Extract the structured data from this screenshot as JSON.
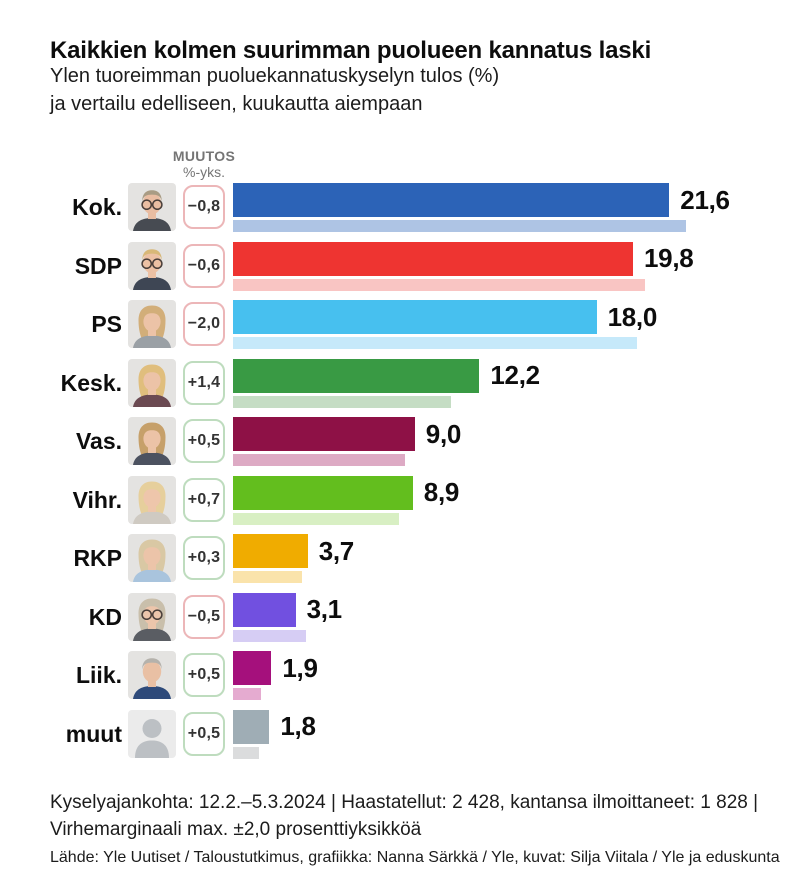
{
  "header": {
    "title": "Kaikkien kolmen suurimman puolueen kannatus laski",
    "subtitle_line1": "Ylen tuoreimman puoluekannatuskyselyn tulos (%)",
    "subtitle_line2": "ja vertailu edelliseen, kuukautta aiempaan"
  },
  "column_header": {
    "line1": "MUUTOS",
    "line2": "%-yks."
  },
  "chart_data": {
    "type": "bar",
    "orientation": "horizontal",
    "unit": "%",
    "value_range": [
      0,
      22.4
    ],
    "legend": "dark bar = current poll result, light bar = previous poll (one month earlier)",
    "rows": [
      {
        "party": "Kok.",
        "value": 21.6,
        "value_label": "21,6",
        "change": -0.8,
        "change_label": "−0,8",
        "previous": 22.4,
        "color": "#2c63b7",
        "light_color": "#aec4e4",
        "avatar": {
          "kind": "m",
          "hair": "#a99c84",
          "skin": "#e9bda2",
          "suit": "#474b52",
          "glasses": true
        }
      },
      {
        "party": "SDP",
        "value": 19.8,
        "value_label": "19,8",
        "change": -0.6,
        "change_label": "−0,6",
        "previous": 20.4,
        "color": "#ee3431",
        "light_color": "#f9c5c3",
        "avatar": {
          "kind": "m",
          "hair": "#d8b878",
          "skin": "#ecc1a4",
          "suit": "#3e4654",
          "glasses": true
        }
      },
      {
        "party": "PS",
        "value": 18.0,
        "value_label": "18,0",
        "change": -2.0,
        "change_label": "−2,0",
        "previous": 20.0,
        "color": "#47c0ef",
        "light_color": "#c6e9fa",
        "avatar": {
          "kind": "f",
          "hair": "#d2ae79",
          "skin": "#ecc3a7",
          "suit": "#9aa0a5",
          "glasses": false
        }
      },
      {
        "party": "Kesk.",
        "value": 12.2,
        "value_label": "12,2",
        "change": 1.4,
        "change_label": "+1,4",
        "previous": 10.8,
        "color": "#399a44",
        "light_color": "#c5ddc4",
        "avatar": {
          "kind": "f",
          "hair": "#e0be7d",
          "skin": "#ecc3a7",
          "suit": "#6b4a52",
          "glasses": false
        }
      },
      {
        "party": "Vas.",
        "value": 9.0,
        "value_label": "9,0",
        "change": 0.5,
        "change_label": "+0,5",
        "previous": 8.5,
        "color": "#8e1146",
        "light_color": "#ddaac4",
        "avatar": {
          "kind": "f",
          "hair": "#c6a06a",
          "skin": "#ecc3a7",
          "suit": "#4c5260",
          "glasses": false
        }
      },
      {
        "party": "Vihr.",
        "value": 8.9,
        "value_label": "8,9",
        "change": 0.7,
        "change_label": "+0,7",
        "previous": 8.2,
        "color": "#63be1e",
        "light_color": "#d8efc3",
        "avatar": {
          "kind": "f",
          "hair": "#e6cf9c",
          "skin": "#eec6ab",
          "suit": "#cfcac2",
          "glasses": false
        }
      },
      {
        "party": "RKP",
        "value": 3.7,
        "value_label": "3,7",
        "change": 0.3,
        "change_label": "+0,3",
        "previous": 3.4,
        "color": "#f0ac00",
        "light_color": "#fae3ab",
        "avatar": {
          "kind": "f",
          "hair": "#d9c8a4",
          "skin": "#ecc4a9",
          "suit": "#a9c4dd",
          "glasses": false
        }
      },
      {
        "party": "KD",
        "value": 3.1,
        "value_label": "3,1",
        "change": -0.5,
        "change_label": "−0,5",
        "previous": 3.6,
        "color": "#7150e0",
        "light_color": "#d6cdf4",
        "avatar": {
          "kind": "f",
          "hair": "#c9bfab",
          "skin": "#ecc5ab",
          "suit": "#5a5d63",
          "glasses": true
        }
      },
      {
        "party": "Liik.",
        "value": 1.9,
        "value_label": "1,9",
        "change": 0.5,
        "change_label": "+0,5",
        "previous": 1.4,
        "color": "#a5107c",
        "light_color": "#e5abd0",
        "avatar": {
          "kind": "m",
          "hair": "#b5b2ac",
          "skin": "#e9c0a4",
          "suit": "#2e4a7a",
          "glasses": false
        }
      },
      {
        "party": "muut",
        "value": 1.8,
        "value_label": "1,8",
        "change": 0.5,
        "change_label": "+0,5",
        "previous": 1.3,
        "color": "#9fadb5",
        "light_color": "#dbdcdd",
        "avatar": {
          "kind": "silhouette",
          "bg": "#ebebeb",
          "fg": "#bcc0c4"
        }
      }
    ]
  },
  "footer": {
    "footnote_line1": "Kyselyajankohta: 12.2.–5.3.2024 | Haastatellut: 2 428, kantansa ilmoittaneet: 1 828 |",
    "footnote_line2": "Virhemarginaali max. ±2,0 prosenttiyksikköä",
    "source": "Lähde: Yle Uutiset / Taloustutkimus, grafiikka: Nanna Särkkä / Yle, kuvat: Silja Viitala / Yle ja eduskunta"
  },
  "style_tokens": {
    "badge_negative_border": "#ecb6b8",
    "badge_positive_border": "#bedcbe",
    "column_header_color": "#757575",
    "text_color": "#0d0d0d"
  }
}
